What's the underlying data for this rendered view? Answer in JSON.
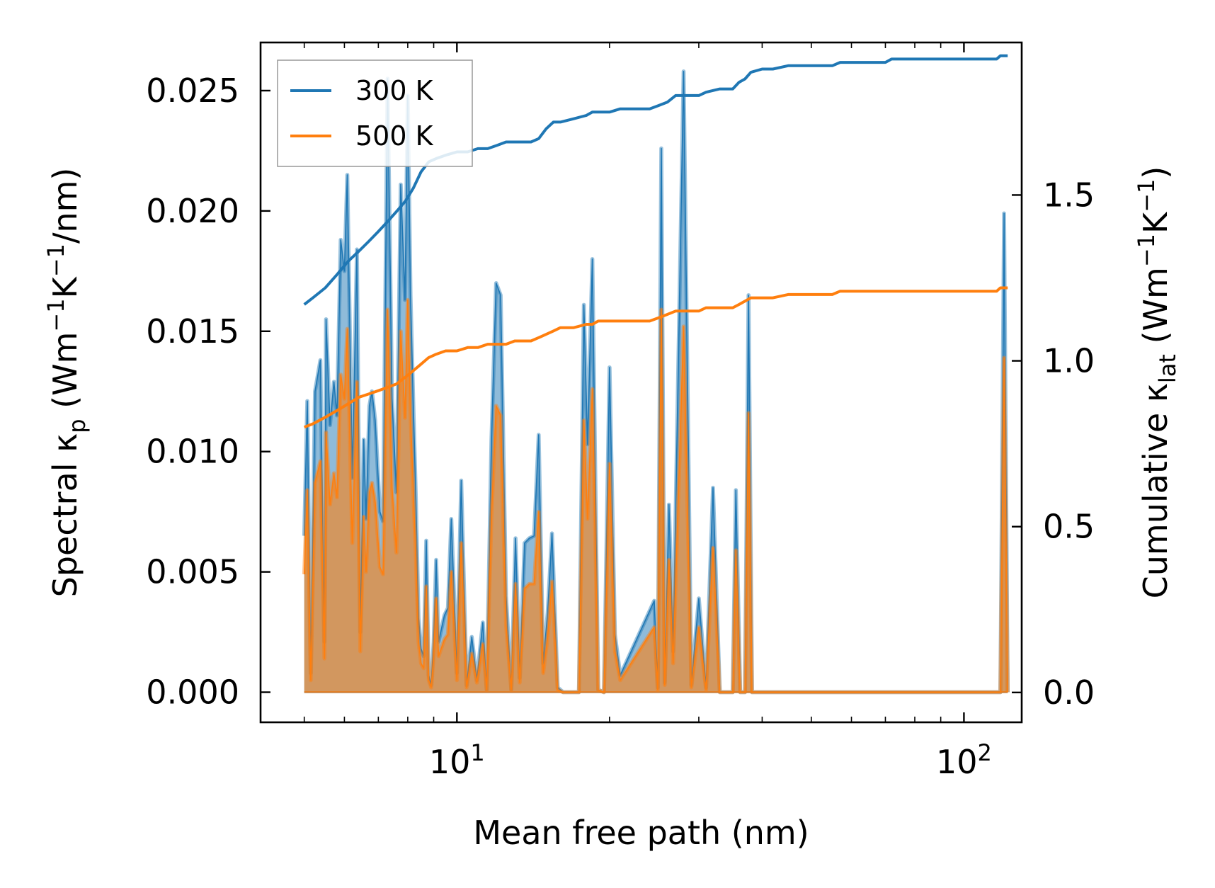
{
  "chart_data": {
    "type": "line",
    "x_scale": "log",
    "xlim": [
      4.1,
      130
    ],
    "ylim_left": [
      -0.00125,
      0.027
    ],
    "ylim_right": [
      -0.09,
      1.96
    ],
    "xlabel": "Mean free path (nm)",
    "ylabel_left": {
      "base": "Spectral κ",
      "sub": "p",
      "unit_pre": " (Wm",
      "sup1": "−1",
      "mid": "K",
      "sup2": "−1",
      "unit_post": "/nm)"
    },
    "ylabel_right": {
      "base": "Cumulative κ",
      "sub": "lat",
      "unit_pre": " (Wm",
      "sup1": "−1",
      "mid": "K",
      "sup2": "−1",
      "unit_post": ")"
    },
    "x_tick_labels": [
      {
        "value": 10,
        "base": "10",
        "exp": "1"
      },
      {
        "value": 100,
        "base": "10",
        "exp": "2"
      }
    ],
    "y_left_ticks": [
      {
        "value": 0.0,
        "label": "0.000"
      },
      {
        "value": 0.005,
        "label": "0.005"
      },
      {
        "value": 0.01,
        "label": "0.010"
      },
      {
        "value": 0.015,
        "label": "0.015"
      },
      {
        "value": 0.02,
        "label": "0.020"
      },
      {
        "value": 0.025,
        "label": "0.025"
      }
    ],
    "y_right_ticks": [
      {
        "value": 0.0,
        "label": "0.0"
      },
      {
        "value": 0.5,
        "label": "0.5"
      },
      {
        "value": 1.0,
        "label": "1.0"
      },
      {
        "value": 1.5,
        "label": "1.5"
      }
    ],
    "legend": {
      "placement": "top-left",
      "entries": [
        {
          "label": "300 K",
          "color": "#1f77b4"
        },
        {
          "label": "500 K",
          "color": "#ff7f0e"
        }
      ]
    },
    "spectral_300K": {
      "color": "#1f77b4",
      "x": [
        5.0,
        5.07,
        5.15,
        5.25,
        5.38,
        5.48,
        5.52,
        5.62,
        5.72,
        5.8,
        5.9,
        6.0,
        6.08,
        6.22,
        6.35,
        6.45,
        6.55,
        6.62,
        6.72,
        6.8,
        6.9,
        7.05,
        7.15,
        7.3,
        7.45,
        7.6,
        7.75,
        7.9,
        8.0,
        8.1,
        8.2,
        8.3,
        8.4,
        8.5,
        8.6,
        8.7,
        8.8,
        8.9,
        9.0,
        9.1,
        9.2,
        9.45,
        9.6,
        9.75,
        10.0,
        10.2,
        10.45,
        10.7,
        10.95,
        11.25,
        11.45,
        11.7,
        11.95,
        12.2,
        12.5,
        12.8,
        13.05,
        13.3,
        13.6,
        13.9,
        14.2,
        14.5,
        14.8,
        15.1,
        15.4,
        15.8,
        16.2,
        16.6,
        17.0,
        17.4,
        17.8,
        18.1,
        18.5,
        19.0,
        19.5,
        20.0,
        20.5,
        21.0,
        24.5,
        24.9,
        25.3,
        25.7,
        26.2,
        26.7,
        28.0,
        29.0,
        30.0,
        31.0,
        32.0,
        33.0,
        34.0,
        35.0,
        35.5,
        36.2,
        37.0,
        37.6,
        38.2,
        39.0,
        40.0,
        41.5,
        43.0,
        44.5,
        55.0,
        56.0,
        57.0,
        72.0,
        73.0,
        74.0,
        118.0,
        120.0,
        122.0
      ],
      "y": [
        0.0065,
        0.0121,
        0.0008,
        0.0125,
        0.0138,
        0.0021,
        0.0155,
        0.0111,
        0.0129,
        0.0115,
        0.0188,
        0.0175,
        0.0215,
        0.0089,
        0.0184,
        0.0025,
        0.0105,
        0.0072,
        0.0119,
        0.0125,
        0.0113,
        0.0075,
        0.0071,
        0.0255,
        0.0122,
        0.0083,
        0.0211,
        0.0163,
        0.0248,
        0.0165,
        0.0121,
        0.0081,
        0.0031,
        0.0018,
        0.0015,
        0.0063,
        0.0007,
        0.0003,
        0.0021,
        0.0055,
        0.0021,
        0.0032,
        0.0035,
        0.0072,
        0.0008,
        0.0088,
        0.0003,
        0.0023,
        0.0005,
        0.0029,
        0.0001,
        0.0105,
        0.017,
        0.0165,
        0.004,
        0.0001,
        0.0064,
        0.0006,
        0.0062,
        0.0064,
        0.0065,
        0.0107,
        0.0012,
        0.0033,
        0.0066,
        0.0002,
        0.0,
        0.0,
        0.0,
        0.0,
        0.0161,
        0.0103,
        0.018,
        0.0001,
        0.0,
        0.0135,
        0.0024,
        0.0007,
        0.0038,
        0.0002,
        0.0226,
        0.0004,
        0.0078,
        0.0017,
        0.0258,
        0.0003,
        0.0039,
        0.0002,
        0.0085,
        0.0,
        0.0,
        0.0,
        0.0084,
        0.0,
        0.0,
        0.0165,
        0.0,
        0.0,
        0.0,
        0.0,
        0.0,
        0.0,
        0.0,
        0.0,
        0.0,
        0.0,
        0.0,
        0.0,
        0.0,
        0.0199,
        0.0
      ]
    },
    "spectral_500K": {
      "color": "#ff7f0e",
      "x": [
        5.0,
        5.07,
        5.15,
        5.25,
        5.38,
        5.48,
        5.52,
        5.62,
        5.72,
        5.8,
        5.9,
        6.0,
        6.08,
        6.22,
        6.35,
        6.45,
        6.55,
        6.62,
        6.72,
        6.8,
        6.9,
        7.05,
        7.15,
        7.3,
        7.45,
        7.6,
        7.75,
        7.9,
        8.0,
        8.1,
        8.2,
        8.3,
        8.4,
        8.5,
        8.6,
        8.7,
        8.8,
        8.9,
        9.0,
        9.1,
        9.2,
        9.45,
        9.6,
        9.75,
        10.0,
        10.2,
        10.45,
        10.7,
        10.95,
        11.25,
        11.45,
        11.7,
        11.95,
        12.2,
        12.5,
        12.8,
        13.05,
        13.3,
        13.6,
        13.9,
        14.2,
        14.5,
        14.8,
        15.1,
        15.4,
        15.8,
        16.2,
        16.6,
        17.0,
        17.4,
        17.8,
        18.1,
        18.5,
        19.0,
        19.5,
        20.0,
        20.5,
        21.0,
        24.5,
        24.9,
        25.3,
        25.7,
        26.2,
        26.7,
        28.0,
        29.0,
        30.0,
        31.0,
        32.0,
        33.0,
        34.0,
        35.0,
        35.5,
        36.2,
        37.0,
        37.6,
        38.2,
        39.0,
        40.0,
        41.5,
        43.0,
        44.5,
        55.0,
        56.0,
        57.0,
        72.0,
        73.0,
        74.0,
        118.0,
        120.0,
        122.0
      ],
      "y": [
        0.0049,
        0.0084,
        0.0005,
        0.0087,
        0.0096,
        0.0014,
        0.0108,
        0.0078,
        0.0091,
        0.0081,
        0.0132,
        0.0122,
        0.0151,
        0.0062,
        0.0129,
        0.0017,
        0.0073,
        0.005,
        0.0083,
        0.0087,
        0.0079,
        0.0052,
        0.0049,
        0.0159,
        0.0085,
        0.0058,
        0.015,
        0.0114,
        0.0163,
        0.0115,
        0.0085,
        0.0056,
        0.0021,
        0.0012,
        0.001,
        0.0044,
        0.0005,
        0.0002,
        0.0015,
        0.0039,
        0.0015,
        0.0022,
        0.0024,
        0.005,
        0.0005,
        0.0062,
        0.0002,
        0.0016,
        0.0004,
        0.002,
        0.0001,
        0.0073,
        0.0119,
        0.0115,
        0.0028,
        0.0001,
        0.0045,
        0.0004,
        0.0043,
        0.0045,
        0.0045,
        0.0075,
        0.0008,
        0.0023,
        0.0046,
        0.0001,
        0.0,
        0.0,
        0.0,
        0.0,
        0.0113,
        0.0072,
        0.0126,
        0.0001,
        0.0,
        0.0095,
        0.0017,
        0.0005,
        0.0027,
        0.0001,
        0.0159,
        0.0003,
        0.0055,
        0.0012,
        0.0152,
        0.0002,
        0.0027,
        0.0001,
        0.006,
        0.0,
        0.0,
        0.0,
        0.0059,
        0.0,
        0.0,
        0.0116,
        0.0,
        0.0,
        0.0,
        0.0,
        0.0,
        0.0,
        0.0,
        0.0,
        0.0,
        0.0,
        0.0,
        0.0,
        0.0,
        0.0139,
        0.0
      ]
    },
    "cumulative_300K": {
      "color": "#1f77b4",
      "x": [
        5.0,
        5.2,
        5.5,
        5.8,
        6.1,
        6.4,
        6.7,
        7.0,
        7.3,
        7.6,
        7.9,
        8.2,
        8.5,
        8.8,
        9.1,
        9.5,
        10.0,
        10.5,
        11.0,
        11.5,
        12.0,
        12.5,
        13.0,
        14.0,
        14.5,
        15.0,
        15.5,
        16.0,
        17.0,
        18.0,
        18.5,
        19.0,
        19.5,
        20.0,
        21.0,
        24.0,
        25.0,
        26.0,
        27.0,
        28.0,
        30.0,
        31.0,
        33.0,
        35.0,
        36.0,
        37.0,
        38.0,
        40.0,
        42.0,
        45.0,
        55.0,
        57.0,
        70.0,
        72.0,
        74.0,
        100.0,
        116.0,
        118.0,
        120.0,
        122.0
      ],
      "y": [
        1.17,
        1.19,
        1.22,
        1.26,
        1.3,
        1.33,
        1.36,
        1.39,
        1.42,
        1.45,
        1.48,
        1.52,
        1.57,
        1.6,
        1.61,
        1.62,
        1.63,
        1.63,
        1.64,
        1.64,
        1.65,
        1.66,
        1.66,
        1.66,
        1.67,
        1.7,
        1.72,
        1.72,
        1.73,
        1.74,
        1.75,
        1.75,
        1.75,
        1.75,
        1.76,
        1.76,
        1.77,
        1.78,
        1.8,
        1.8,
        1.8,
        1.81,
        1.82,
        1.82,
        1.84,
        1.85,
        1.87,
        1.88,
        1.88,
        1.89,
        1.89,
        1.9,
        1.9,
        1.91,
        1.91,
        1.91,
        1.91,
        1.92,
        1.92,
        1.92
      ]
    },
    "cumulative_500K": {
      "color": "#ff7f0e",
      "x": [
        5.0,
        5.2,
        5.5,
        5.8,
        6.1,
        6.4,
        6.7,
        7.0,
        7.3,
        7.6,
        7.9,
        8.2,
        8.5,
        8.8,
        9.1,
        9.5,
        10.0,
        10.5,
        11.0,
        11.5,
        12.0,
        12.5,
        13.0,
        14.0,
        14.5,
        15.0,
        15.5,
        16.0,
        17.0,
        18.0,
        18.5,
        19.0,
        19.5,
        20.0,
        21.0,
        24.0,
        25.0,
        26.0,
        27.0,
        28.0,
        30.0,
        31.0,
        33.0,
        35.0,
        36.0,
        37.0,
        38.0,
        40.0,
        42.0,
        45.0,
        55.0,
        57.0,
        70.0,
        72.0,
        74.0,
        100.0,
        116.0,
        118.0,
        120.0,
        122.0
      ],
      "y": [
        0.8,
        0.81,
        0.83,
        0.85,
        0.87,
        0.89,
        0.9,
        0.91,
        0.92,
        0.93,
        0.95,
        0.97,
        0.99,
        1.01,
        1.02,
        1.03,
        1.03,
        1.04,
        1.04,
        1.05,
        1.05,
        1.05,
        1.06,
        1.06,
        1.07,
        1.08,
        1.09,
        1.1,
        1.1,
        1.11,
        1.11,
        1.12,
        1.12,
        1.12,
        1.12,
        1.12,
        1.13,
        1.14,
        1.15,
        1.15,
        1.15,
        1.16,
        1.16,
        1.16,
        1.17,
        1.18,
        1.19,
        1.19,
        1.19,
        1.2,
        1.2,
        1.21,
        1.21,
        1.21,
        1.21,
        1.21,
        1.21,
        1.22,
        1.22,
        1.22
      ]
    }
  }
}
